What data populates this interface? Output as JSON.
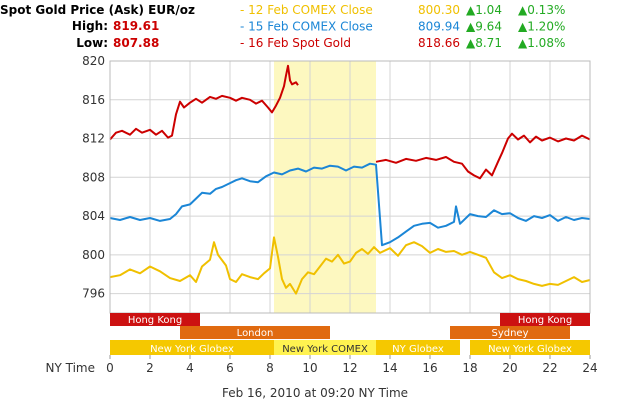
{
  "header": {
    "title": "Spot Gold Price (Ask) EUR/oz",
    "high_label": "High:",
    "high_value": "819.61",
    "low_label": "Low:",
    "low_value": "807.88",
    "colors": {
      "title": "#000000",
      "high_low": "#cc0000"
    },
    "legend": [
      {
        "dash": "-",
        "label": "12 Feb COMEX Close",
        "price": "800.30",
        "change": "1.04",
        "pct": "0.13%",
        "color": "#f0c000"
      },
      {
        "dash": "-",
        "label": "15 Feb COMEX Close",
        "price": "809.94",
        "change": "9.64",
        "pct": "1.20%",
        "color": "#1b86d6"
      },
      {
        "dash": "-",
        "label": "16 Feb Spot Gold",
        "price": "818.66",
        "change": "8.71",
        "pct": "1.08%",
        "color": "#cc0000"
      }
    ],
    "up_color": "#22aa22",
    "up_arrow": "▲"
  },
  "chart_data": {
    "type": "line",
    "title": "Spot Gold Price (Ask) EUR/oz",
    "xlabel": "NY Time",
    "ylabel": "",
    "footer": "Feb 16, 2010 at 09:20 NY Time",
    "xlim": [
      0,
      24
    ],
    "ylim": [
      794,
      820
    ],
    "x_ticks": [
      "0",
      "2",
      "4",
      "6",
      "8",
      "10",
      "12",
      "14",
      "16",
      "18",
      "20",
      "22",
      "24"
    ],
    "y_ticks": [
      "820",
      "816",
      "812",
      "808",
      "804",
      "800",
      "796"
    ],
    "grid": true,
    "highlight_range": [
      8.2,
      13.3
    ],
    "highlight_color": "#fdf8c0",
    "series": [
      {
        "name": "12 Feb COMEX Close",
        "color": "#f0c000",
        "points": [
          [
            0,
            797.7
          ],
          [
            0.5,
            797.9
          ],
          [
            1,
            798.5
          ],
          [
            1.5,
            798.1
          ],
          [
            2,
            798.8
          ],
          [
            2.5,
            798.3
          ],
          [
            3,
            797.6
          ],
          [
            3.5,
            797.3
          ],
          [
            4,
            797.9
          ],
          [
            4.3,
            797.2
          ],
          [
            4.6,
            798.8
          ],
          [
            5,
            799.5
          ],
          [
            5.2,
            801.3
          ],
          [
            5.4,
            800.0
          ],
          [
            5.8,
            798.9
          ],
          [
            6,
            797.5
          ],
          [
            6.3,
            797.2
          ],
          [
            6.6,
            798.0
          ],
          [
            7,
            797.7
          ],
          [
            7.4,
            797.5
          ],
          [
            7.7,
            798.1
          ],
          [
            8,
            798.6
          ],
          [
            8.2,
            801.8
          ],
          [
            8.4,
            799.8
          ],
          [
            8.6,
            797.5
          ],
          [
            8.8,
            796.6
          ],
          [
            9,
            797.0
          ],
          [
            9.3,
            796.0
          ],
          [
            9.6,
            797.5
          ],
          [
            9.9,
            798.2
          ],
          [
            10.2,
            798.0
          ],
          [
            10.5,
            798.8
          ],
          [
            10.8,
            799.6
          ],
          [
            11.1,
            799.3
          ],
          [
            11.4,
            800.0
          ],
          [
            11.7,
            799.1
          ],
          [
            12,
            799.3
          ],
          [
            12.3,
            800.2
          ],
          [
            12.6,
            800.6
          ],
          [
            12.9,
            800.1
          ],
          [
            13.2,
            800.8
          ],
          [
            13.5,
            800.2
          ],
          [
            14,
            800.7
          ],
          [
            14.4,
            799.9
          ],
          [
            14.8,
            801.0
          ],
          [
            15.2,
            801.3
          ],
          [
            15.6,
            800.9
          ],
          [
            16,
            800.2
          ],
          [
            16.4,
            800.6
          ],
          [
            16.8,
            800.3
          ],
          [
            17.2,
            800.4
          ],
          [
            17.6,
            800.0
          ],
          [
            18,
            800.3
          ],
          [
            18.4,
            800.0
          ],
          [
            18.8,
            799.7
          ],
          [
            19.2,
            798.2
          ],
          [
            19.6,
            797.6
          ],
          [
            20,
            797.9
          ],
          [
            20.4,
            797.5
          ],
          [
            20.8,
            797.3
          ],
          [
            21.2,
            797.0
          ],
          [
            21.6,
            796.8
          ],
          [
            22,
            797.0
          ],
          [
            22.4,
            796.9
          ],
          [
            22.8,
            797.3
          ],
          [
            23.2,
            797.7
          ],
          [
            23.6,
            797.2
          ],
          [
            24,
            797.4
          ]
        ]
      },
      {
        "name": "15 Feb COMEX Close",
        "color": "#1b86d6",
        "points": [
          [
            0,
            803.8
          ],
          [
            0.5,
            803.6
          ],
          [
            1,
            803.9
          ],
          [
            1.5,
            803.6
          ],
          [
            2,
            803.8
          ],
          [
            2.5,
            803.5
          ],
          [
            3,
            803.7
          ],
          [
            3.3,
            804.2
          ],
          [
            3.6,
            805.0
          ],
          [
            4,
            805.2
          ],
          [
            4.3,
            805.8
          ],
          [
            4.6,
            806.4
          ],
          [
            5,
            806.3
          ],
          [
            5.3,
            806.8
          ],
          [
            5.6,
            807.0
          ],
          [
            6,
            807.4
          ],
          [
            6.3,
            807.7
          ],
          [
            6.6,
            807.9
          ],
          [
            7,
            807.6
          ],
          [
            7.4,
            807.5
          ],
          [
            7.8,
            808.1
          ],
          [
            8.2,
            808.5
          ],
          [
            8.6,
            808.3
          ],
          [
            9,
            808.7
          ],
          [
            9.4,
            808.9
          ],
          [
            9.8,
            808.6
          ],
          [
            10.2,
            809.0
          ],
          [
            10.6,
            808.9
          ],
          [
            11,
            809.2
          ],
          [
            11.4,
            809.1
          ],
          [
            11.8,
            808.7
          ],
          [
            12.2,
            809.1
          ],
          [
            12.6,
            809.0
          ],
          [
            13,
            809.4
          ],
          [
            13.3,
            809.3
          ],
          [
            13.6,
            801.0
          ],
          [
            14,
            801.3
          ],
          [
            14.4,
            801.8
          ],
          [
            14.8,
            802.4
          ],
          [
            15.2,
            803.0
          ],
          [
            15.6,
            803.2
          ],
          [
            16,
            803.3
          ],
          [
            16.4,
            802.8
          ],
          [
            16.8,
            803.0
          ],
          [
            17.2,
            803.4
          ],
          [
            17.3,
            805.0
          ],
          [
            17.5,
            803.2
          ],
          [
            18,
            804.2
          ],
          [
            18.4,
            804.0
          ],
          [
            18.8,
            803.9
          ],
          [
            19.2,
            804.6
          ],
          [
            19.6,
            804.2
          ],
          [
            20,
            804.3
          ],
          [
            20.4,
            803.8
          ],
          [
            20.8,
            803.5
          ],
          [
            21.2,
            804.0
          ],
          [
            21.6,
            803.8
          ],
          [
            22,
            804.1
          ],
          [
            22.4,
            803.5
          ],
          [
            22.8,
            803.9
          ],
          [
            23.2,
            803.6
          ],
          [
            23.6,
            803.8
          ],
          [
            24,
            803.7
          ]
        ]
      },
      {
        "name": "16 Feb Spot Gold",
        "color": "#cc0000",
        "points": [
          [
            0,
            811.9
          ],
          [
            0.3,
            812.6
          ],
          [
            0.6,
            812.8
          ],
          [
            1,
            812.4
          ],
          [
            1.3,
            813.0
          ],
          [
            1.6,
            812.6
          ],
          [
            2,
            812.9
          ],
          [
            2.3,
            812.4
          ],
          [
            2.6,
            812.8
          ],
          [
            2.9,
            812.1
          ],
          [
            3.1,
            812.3
          ],
          [
            3.3,
            814.5
          ],
          [
            3.5,
            815.8
          ],
          [
            3.7,
            815.2
          ],
          [
            4,
            815.7
          ],
          [
            4.3,
            816.1
          ],
          [
            4.6,
            815.7
          ],
          [
            5,
            816.3
          ],
          [
            5.3,
            816.1
          ],
          [
            5.6,
            816.4
          ],
          [
            6,
            816.2
          ],
          [
            6.3,
            815.9
          ],
          [
            6.6,
            816.2
          ],
          [
            7,
            816.0
          ],
          [
            7.3,
            815.6
          ],
          [
            7.6,
            815.9
          ],
          [
            7.9,
            815.2
          ],
          [
            8.1,
            814.7
          ],
          [
            8.3,
            815.4
          ],
          [
            8.5,
            816.2
          ],
          [
            8.7,
            817.4
          ],
          [
            8.8,
            818.5
          ],
          [
            8.9,
            819.5
          ],
          [
            9.0,
            818.0
          ],
          [
            9.1,
            817.6
          ],
          [
            9.3,
            817.8
          ],
          [
            9.4,
            817.5
          ]
        ]
      },
      {
        "name": "",
        "color": "#cc0000",
        "points": [
          [
            13.3,
            809.6
          ],
          [
            13.8,
            809.8
          ],
          [
            14.3,
            809.5
          ],
          [
            14.8,
            809.9
          ],
          [
            15.3,
            809.7
          ],
          [
            15.8,
            810.0
          ],
          [
            16.3,
            809.8
          ],
          [
            16.8,
            810.1
          ],
          [
            17.2,
            809.6
          ],
          [
            17.6,
            809.4
          ],
          [
            17.9,
            808.6
          ],
          [
            18.2,
            808.2
          ],
          [
            18.5,
            807.9
          ],
          [
            18.8,
            808.8
          ],
          [
            19.1,
            808.2
          ],
          [
            19.4,
            809.6
          ],
          [
            19.6,
            810.5
          ],
          [
            19.9,
            812.0
          ],
          [
            20.1,
            812.5
          ],
          [
            20.4,
            811.9
          ],
          [
            20.7,
            812.3
          ],
          [
            21,
            811.6
          ],
          [
            21.3,
            812.2
          ],
          [
            21.6,
            811.8
          ],
          [
            22,
            812.1
          ],
          [
            22.4,
            811.7
          ],
          [
            22.8,
            812.0
          ],
          [
            23.2,
            811.8
          ],
          [
            23.6,
            812.3
          ],
          [
            24,
            811.9
          ]
        ]
      }
    ],
    "sessions": [
      {
        "label": "Hong Kong",
        "row": 0,
        "start": 0,
        "end": 4.5,
        "color": "#cc1111",
        "text_color": "#ffffff"
      },
      {
        "label": "Hong Kong",
        "row": 0,
        "start": 19.5,
        "end": 24,
        "color": "#cc1111",
        "text_color": "#ffffff"
      },
      {
        "label": "London",
        "row": 1,
        "start": 3.5,
        "end": 11,
        "color": "#e06a10",
        "text_color": "#ffffff"
      },
      {
        "label": "Sydney",
        "row": 1,
        "start": 17,
        "end": 23,
        "color": "#e06a10",
        "text_color": "#ffffff"
      },
      {
        "label": "New York Globex",
        "row": 2,
        "start": 0,
        "end": 8.2,
        "color": "#f5c800",
        "text_color": "#ffffff"
      },
      {
        "label": "New York COMEX",
        "row": 2,
        "start": 8.2,
        "end": 13.3,
        "color": "#fff250",
        "text_color": "#333333"
      },
      {
        "label": "NY Globex",
        "row": 2,
        "start": 13.3,
        "end": 17.5,
        "color": "#f5c800",
        "text_color": "#ffffff"
      },
      {
        "label": "New York Globex",
        "row": 2,
        "start": 18,
        "end": 24,
        "color": "#f5c800",
        "text_color": "#ffffff"
      }
    ]
  }
}
